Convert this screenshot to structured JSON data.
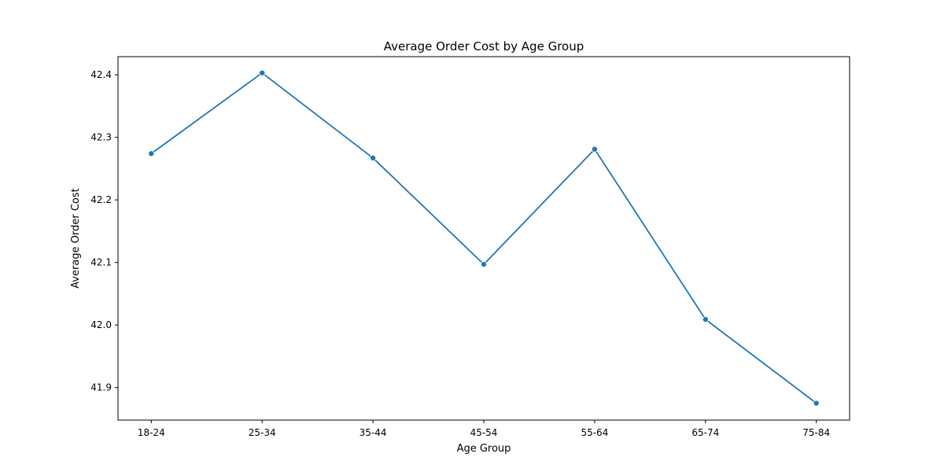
{
  "chart_data": {
    "type": "line",
    "title": "Average Order Cost by Age Group",
    "xlabel": "Age Group",
    "ylabel": "Average Order Cost",
    "categories": [
      "18-24",
      "25-34",
      "35-44",
      "45-54",
      "55-64",
      "65-74",
      "75-84"
    ],
    "series": [
      {
        "name": "Average Order Cost",
        "values": [
          42.274,
          42.403,
          42.267,
          42.097,
          42.281,
          42.009,
          41.875
        ],
        "color": "#1f77b4",
        "marker": "circle"
      }
    ],
    "ylim": [
      41.848,
      42.429
    ],
    "yticks": [
      41.9,
      42.0,
      42.1,
      42.2,
      42.3,
      42.4
    ],
    "ytick_labels": [
      "41.9",
      "42.0",
      "42.1",
      "42.2",
      "42.3",
      "42.4"
    ],
    "grid": false,
    "legend": "none"
  }
}
